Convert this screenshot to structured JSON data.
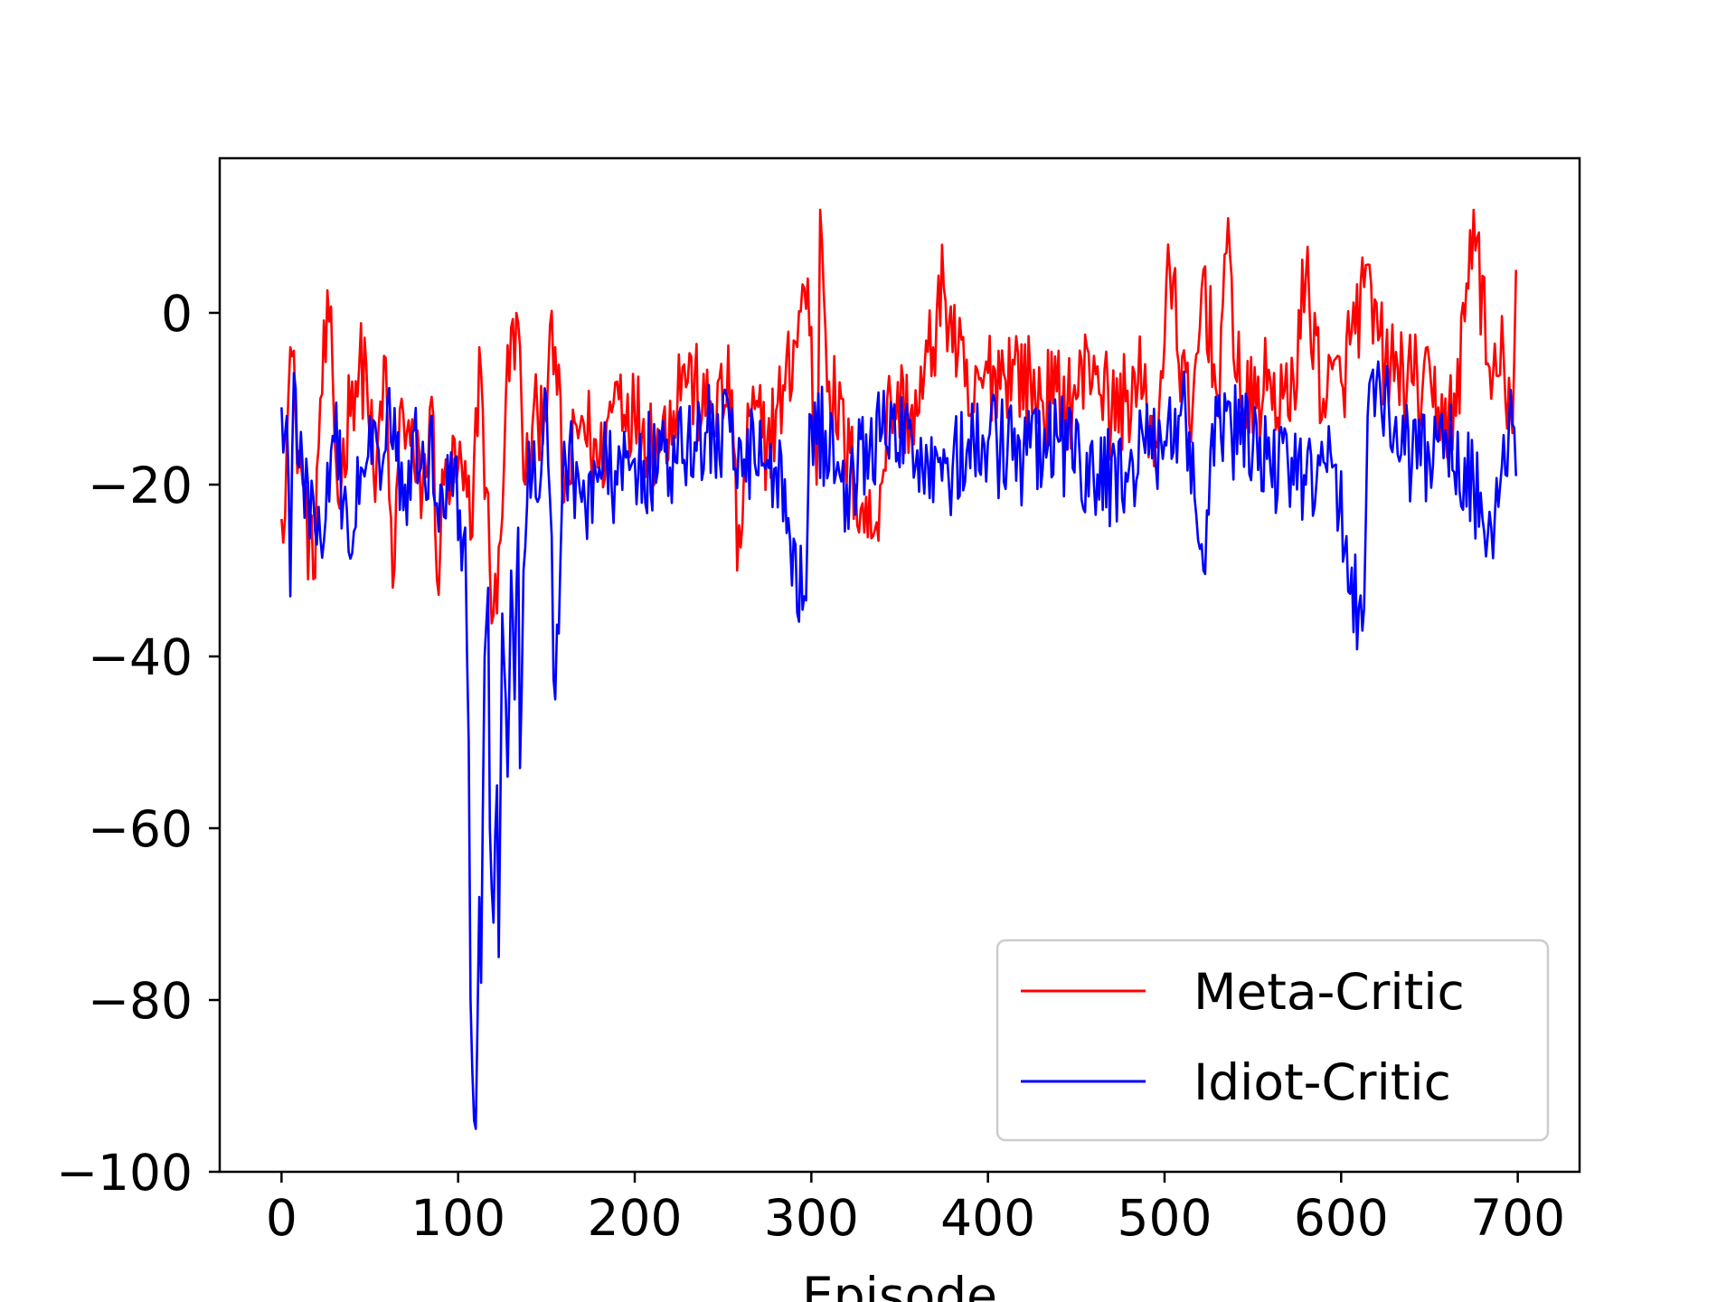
{
  "chart_data": {
    "type": "line",
    "title": "",
    "xlabel": "Episode",
    "ylabel": "",
    "xlim": [
      -35,
      735
    ],
    "ylim": [
      -100,
      18
    ],
    "xticks": [
      0,
      100,
      200,
      300,
      400,
      500,
      600,
      700
    ],
    "yticks": [
      0,
      -20,
      -40,
      -60,
      -80,
      -100
    ],
    "xtick_labels": [
      "0",
      "100",
      "200",
      "300",
      "400",
      "500",
      "600",
      "700"
    ],
    "ytick_labels": [
      "0",
      "−20",
      "−40",
      "−60",
      "−80",
      "−100"
    ],
    "grid": false,
    "legend_position": "lower-right",
    "series": [
      {
        "name": "Meta-Critic",
        "color": "#ff0000",
        "keypoints": [
          [
            0,
            -24
          ],
          [
            3,
            -15
          ],
          [
            5,
            -4
          ],
          [
            8,
            -12
          ],
          [
            12,
            -20
          ],
          [
            18,
            -31
          ],
          [
            22,
            -10
          ],
          [
            27,
            -1
          ],
          [
            32,
            -22
          ],
          [
            40,
            -8
          ],
          [
            48,
            -6
          ],
          [
            53,
            -22
          ],
          [
            58,
            -5
          ],
          [
            63,
            -32
          ],
          [
            68,
            -10
          ],
          [
            75,
            -18
          ],
          [
            80,
            -20
          ],
          [
            86,
            -12
          ],
          [
            88,
            -31
          ],
          [
            92,
            -20
          ],
          [
            100,
            -18
          ],
          [
            108,
            -26
          ],
          [
            112,
            -4
          ],
          [
            118,
            -30
          ],
          [
            122,
            -35
          ],
          [
            127,
            -10
          ],
          [
            133,
            0
          ],
          [
            138,
            -20
          ],
          [
            145,
            -12
          ],
          [
            155,
            -4
          ],
          [
            160,
            -22
          ],
          [
            170,
            -12
          ],
          [
            180,
            -18
          ],
          [
            190,
            -8
          ],
          [
            200,
            -12
          ],
          [
            215,
            -15
          ],
          [
            228,
            -6
          ],
          [
            240,
            -12
          ],
          [
            255,
            -9
          ],
          [
            258,
            -30
          ],
          [
            265,
            -12
          ],
          [
            275,
            -15
          ],
          [
            285,
            -9
          ],
          [
            298,
            4
          ],
          [
            303,
            -20
          ],
          [
            305,
            12
          ],
          [
            310,
            -8
          ],
          [
            325,
            -20
          ],
          [
            335,
            -26
          ],
          [
            345,
            -10
          ],
          [
            360,
            -12
          ],
          [
            375,
            3
          ],
          [
            390,
            -12
          ],
          [
            400,
            -7
          ],
          [
            415,
            -6
          ],
          [
            430,
            -10
          ],
          [
            448,
            -10
          ],
          [
            460,
            -5
          ],
          [
            470,
            -12
          ],
          [
            485,
            -8
          ],
          [
            495,
            -15
          ],
          [
            503,
            5
          ],
          [
            515,
            -15
          ],
          [
            522,
            5
          ],
          [
            530,
            -10
          ],
          [
            535,
            7
          ],
          [
            545,
            -12
          ],
          [
            560,
            -8
          ],
          [
            570,
            -12
          ],
          [
            580,
            4
          ],
          [
            590,
            -10
          ],
          [
            600,
            -8
          ],
          [
            613,
            3
          ],
          [
            625,
            -6
          ],
          [
            640,
            -8
          ],
          [
            655,
            -11
          ],
          [
            665,
            -12
          ],
          [
            675,
            12
          ],
          [
            685,
            -10
          ],
          [
            692,
            -5
          ],
          [
            697,
            -14
          ],
          [
            699,
            5
          ]
        ]
      },
      {
        "name": "Idiot-Critic",
        "color": "#0000ff",
        "keypoints": [
          [
            0,
            -11
          ],
          [
            3,
            -12
          ],
          [
            5,
            -33
          ],
          [
            7,
            -7
          ],
          [
            10,
            -18
          ],
          [
            15,
            -20
          ],
          [
            20,
            -27
          ],
          [
            25,
            -24
          ],
          [
            30,
            -15
          ],
          [
            35,
            -22
          ],
          [
            40,
            -28
          ],
          [
            45,
            -18
          ],
          [
            50,
            -12
          ],
          [
            55,
            -16
          ],
          [
            60,
            -10
          ],
          [
            70,
            -20
          ],
          [
            80,
            -15
          ],
          [
            90,
            -20
          ],
          [
            98,
            -17
          ],
          [
            102,
            -30
          ],
          [
            104,
            -25
          ],
          [
            106,
            -50
          ],
          [
            107,
            -80
          ],
          [
            108,
            -88
          ],
          [
            109,
            -94
          ],
          [
            110,
            -95
          ],
          [
            112,
            -68
          ],
          [
            113,
            -78
          ],
          [
            115,
            -40
          ],
          [
            117,
            -32
          ],
          [
            118,
            -60
          ],
          [
            120,
            -71
          ],
          [
            122,
            -55
          ],
          [
            123,
            -75
          ],
          [
            125,
            -35
          ],
          [
            127,
            -45
          ],
          [
            128,
            -54
          ],
          [
            130,
            -30
          ],
          [
            132,
            -45
          ],
          [
            134,
            -25
          ],
          [
            135,
            -53
          ],
          [
            137,
            -30
          ],
          [
            140,
            -15
          ],
          [
            145,
            -22
          ],
          [
            150,
            -10
          ],
          [
            155,
            -45
          ],
          [
            160,
            -15
          ],
          [
            170,
            -22
          ],
          [
            180,
            -18
          ],
          [
            190,
            -20
          ],
          [
            200,
            -17
          ],
          [
            220,
            -18
          ],
          [
            240,
            -14
          ],
          [
            260,
            -15
          ],
          [
            280,
            -18
          ],
          [
            296,
            -33
          ],
          [
            300,
            -12
          ],
          [
            320,
            -20
          ],
          [
            340,
            -14
          ],
          [
            360,
            -16
          ],
          [
            380,
            -18
          ],
          [
            400,
            -15
          ],
          [
            420,
            -17
          ],
          [
            440,
            -15
          ],
          [
            460,
            -20
          ],
          [
            480,
            -18
          ],
          [
            500,
            -15
          ],
          [
            510,
            -10
          ],
          [
            522,
            -30
          ],
          [
            530,
            -12
          ],
          [
            550,
            -16
          ],
          [
            570,
            -18
          ],
          [
            580,
            -20
          ],
          [
            595,
            -18
          ],
          [
            612,
            -37
          ],
          [
            615,
            -12
          ],
          [
            620,
            -8
          ],
          [
            640,
            -18
          ],
          [
            660,
            -15
          ],
          [
            675,
            -20
          ],
          [
            685,
            -25
          ],
          [
            695,
            -13
          ],
          [
            699,
            -19
          ]
        ]
      }
    ]
  }
}
